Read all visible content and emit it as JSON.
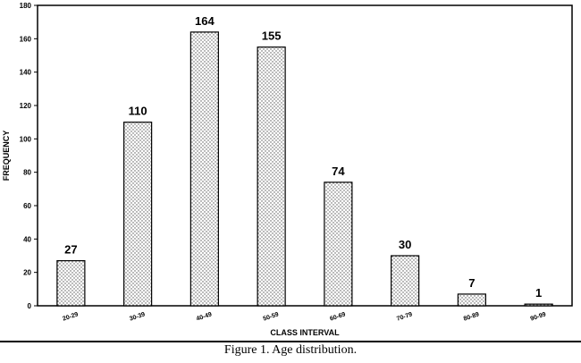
{
  "chart_data": {
    "type": "bar",
    "title": "",
    "xlabel": "CLASS INTERVAL",
    "ylabel": "FREQUENCY",
    "categories": [
      "20-29",
      "30-39",
      "40-49",
      "50-59",
      "60-69",
      "70-79",
      "80-89",
      "90-99"
    ],
    "values": [
      27,
      110,
      164,
      155,
      74,
      30,
      7,
      1
    ],
    "data_labels": [
      "27",
      "110",
      "164",
      "155",
      "74",
      "30",
      "7",
      "1"
    ],
    "ylim": [
      0,
      180
    ],
    "yticks": [
      0,
      20,
      40,
      60,
      80,
      100,
      120,
      140,
      160,
      180
    ],
    "grid": false,
    "legend": "none",
    "bar_fill": "dotted",
    "colors": {
      "bar_dots": "#555555",
      "bar_outline": "#000000"
    }
  },
  "caption": "Figure 1. Age distribution."
}
